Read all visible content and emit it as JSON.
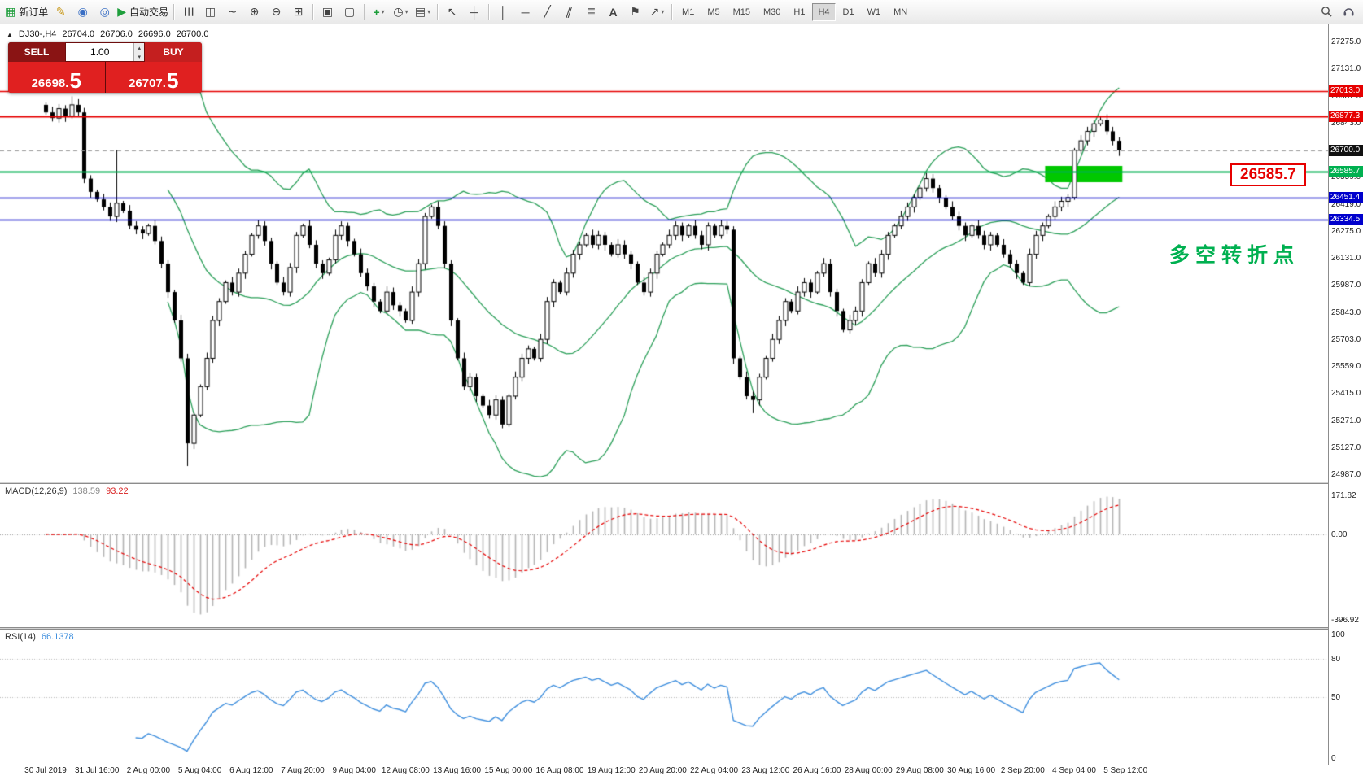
{
  "toolbar": {
    "new_order_label": "新订单",
    "autotrading_label": "自动交易",
    "glyphs": {
      "new_order": "▦",
      "metaeditor": "✎",
      "profile": "◉",
      "signals": "◎",
      "play": "▶",
      "bars": "☰",
      "candles": "◫",
      "linechart": "∼",
      "zoom_in": "⊕",
      "zoom_out": "⊖",
      "tile": "⊞",
      "cascade": "▣",
      "window": "▢",
      "indicators": "+",
      "periods": "◷",
      "templates": "▤",
      "cursor": "↖",
      "crosshair": "┼",
      "vline": "│",
      "hline": "─",
      "trendline": "╱",
      "channel": "∥",
      "fibonacci": "≣",
      "text": "A",
      "label": "⚑",
      "arrows": "↗",
      "caret": "▾",
      "spin_up": "▴",
      "spin_down": "▾",
      "symbol_marker": "▲"
    },
    "timeframes": [
      {
        "label": "M1",
        "active": false
      },
      {
        "label": "M5",
        "active": false
      },
      {
        "label": "M15",
        "active": false
      },
      {
        "label": "M30",
        "active": false
      },
      {
        "label": "H1",
        "active": false
      },
      {
        "label": "H4",
        "active": true
      },
      {
        "label": "D1",
        "active": false
      },
      {
        "label": "W1",
        "active": false
      },
      {
        "label": "MN",
        "active": false
      }
    ]
  },
  "symbol_bar": {
    "symbol": "DJ30-,H4",
    "open": "26704.0",
    "high": "26706.0",
    "low": "26696.0",
    "close": "26700.0"
  },
  "trade_panel": {
    "sell_label": "SELL",
    "buy_label": "BUY",
    "volume": "1.00",
    "sell_price_main": "26698.",
    "sell_price_frac": "5",
    "buy_price_main": "26707.",
    "buy_price_frac": "5"
  },
  "chart": {
    "levels": [
      {
        "price": 27013.0,
        "label": "27013.0",
        "color": "#e60000",
        "line_color": "#e60000",
        "width": 1.4,
        "style": "solid"
      },
      {
        "price": 26877.3,
        "label": "26877.3",
        "color": "#e60000",
        "line_color": "#e60000",
        "width": 2,
        "style": "solid"
      },
      {
        "price": 26700.0,
        "label": "26700.0",
        "color": "#111111",
        "line_color": "#999999",
        "width": 1,
        "style": "dashed"
      },
      {
        "price": 26585.7,
        "label": "26585.7",
        "color": "#00b050",
        "line_color": "#00b050",
        "width": 2,
        "style": "solid"
      },
      {
        "price": 26451.4,
        "label": "26451.4",
        "color": "#0000cc",
        "line_color": "#0000cc",
        "width": 1.6,
        "style": "solid"
      },
      {
        "price": 26334.5,
        "label": "26334.5",
        "color": "#0000cc",
        "line_color": "#0000cc",
        "width": 1.6,
        "style": "solid"
      }
    ],
    "axis_ticks": [
      "27275.0",
      "27131.0",
      "26987.0",
      "26843.0",
      "26703.0",
      "26559.0",
      "26419.0",
      "26275.0",
      "26131.0",
      "25987.0",
      "25843.0",
      "25703.0",
      "25559.0",
      "25415.0",
      "25271.0",
      "25127.0",
      "24987.0"
    ],
    "highlight": {
      "index_start": 156,
      "index_end": 167,
      "price_high": 26617,
      "price_low": 26531,
      "color": "#00c800"
    },
    "callout": {
      "text": "26585.7"
    },
    "annotation": {
      "text": "多空转折点"
    }
  },
  "chart_data": {
    "type": "candlestick",
    "symbol": "DJ30-",
    "timeframe": "H4",
    "y_axis": {
      "min": 24987,
      "max": 27275
    },
    "closes": [
      26900,
      26870,
      26920,
      26880,
      26940,
      26900,
      26550,
      26480,
      26440,
      26400,
      26350,
      26420,
      26380,
      26300,
      26280,
      26260,
      26300,
      26220,
      26100,
      25950,
      25800,
      25600,
      25150,
      25300,
      25450,
      25600,
      25800,
      25900,
      26000,
      25950,
      26050,
      26150,
      26250,
      26300,
      26220,
      26100,
      26000,
      25950,
      26080,
      26250,
      26300,
      26200,
      26100,
      26050,
      26120,
      26250,
      26300,
      26220,
      26150,
      26050,
      25980,
      25900,
      25850,
      25950,
      25880,
      25850,
      25800,
      25950,
      26100,
      26350,
      26400,
      26300,
      26100,
      25800,
      25600,
      25450,
      25500,
      25400,
      25350,
      25300,
      25380,
      25250,
      25400,
      25500,
      25600,
      25650,
      25600,
      25700,
      25900,
      26000,
      25950,
      26050,
      26150,
      26200,
      26250,
      26200,
      26250,
      26200,
      26150,
      26200,
      26150,
      26100,
      26000,
      25950,
      26050,
      26150,
      26200,
      26250,
      26300,
      26250,
      26300,
      26250,
      26200,
      26300,
      26250,
      26300,
      26280,
      25600,
      25500,
      25400,
      25380,
      25500,
      25600,
      25700,
      25800,
      25900,
      25850,
      25950,
      26000,
      25950,
      26050,
      26100,
      25950,
      25850,
      25750,
      25800,
      25850,
      26000,
      26100,
      26050,
      26150,
      26250,
      26300,
      26350,
      26400,
      26450,
      26500,
      26550,
      26500,
      26450,
      26400,
      26350,
      26300,
      26250,
      26300,
      26250,
      26200,
      26250,
      26200,
      26150,
      26100,
      26050,
      26000,
      26150,
      26250,
      26300,
      26350,
      26400,
      26430,
      26450,
      26700,
      26750,
      26800,
      26840,
      26860,
      26800,
      26750,
      26700
    ],
    "high_overrides": {
      "4": 26985,
      "11": 26700,
      "164": 26880
    },
    "low_overrides": {
      "22": 25030,
      "71": 25230,
      "110": 25310
    },
    "time_labels": [
      "30 Jul 2019",
      "31 Jul 16:00",
      "2 Aug 00:00",
      "5 Aug 04:00",
      "6 Aug 12:00",
      "7 Aug 20:00",
      "9 Aug 04:00",
      "12 Aug 08:00",
      "13 Aug 16:00",
      "15 Aug 00:00",
      "16 Aug 08:00",
      "19 Aug 12:00",
      "20 Aug 20:00",
      "22 Aug 04:00",
      "23 Aug 12:00",
      "26 Aug 16:00",
      "28 Aug 00:00",
      "29 Aug 08:00",
      "30 Aug 16:00",
      "2 Sep 20:00",
      "4 Sep 04:00",
      "5 Sep 12:00"
    ],
    "indicators": [
      {
        "name": "Bollinger Bands",
        "period": 20,
        "deviation": 2,
        "color": "#2ca05a"
      },
      {
        "name": "MACD",
        "fast": 12,
        "slow": 26,
        "signal": 9
      },
      {
        "name": "RSI",
        "period": 14
      }
    ]
  },
  "colors": {
    "bull_candle": "#ffffff",
    "bear_candle": "#000000",
    "candle_outline": "#000000",
    "bollinger": "#2ca05a",
    "macd_histogram": "#b4b4b4",
    "macd_signal": "#e60000",
    "rsi_line": "#3f8fde",
    "accent_green": "#00b050",
    "accent_red": "#e60000",
    "accent_blue": "#0000cc"
  },
  "macd_panel": {
    "label": "MACD(12,26,9)",
    "value_main": "138.59",
    "value_signal": "93.22",
    "axis": [
      "171.82",
      "0.00",
      "-396.92"
    ]
  },
  "rsi_panel": {
    "label": "RSI(14)",
    "value": "66.1378",
    "axis": [
      "100",
      "80",
      "50",
      "0"
    ],
    "levels": [
      80,
      50
    ]
  }
}
